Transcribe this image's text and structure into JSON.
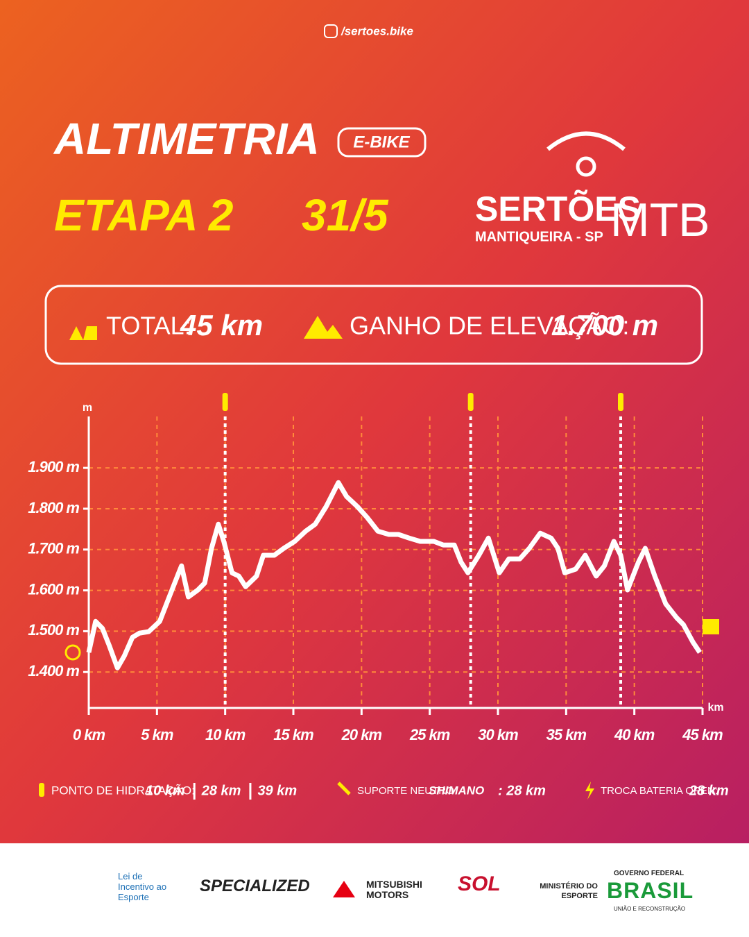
{
  "header": {
    "handle": "/sertoes.bike",
    "title": "ALTIMETRIA",
    "badge": "E-BIKE",
    "stage": "ETAPA 2",
    "date": "31/5",
    "logo_main": "SERTÕES",
    "logo_mtb": "MTB",
    "logo_sub": "MANTIQUEIRA - SP"
  },
  "stats": {
    "total_label": "TOTAL:",
    "total_value": "45 km",
    "gain_label": "GANHO DE ELEVAÇÃO:",
    "gain_value": "1.700 m"
  },
  "chart_data": {
    "type": "line",
    "y_unit": "m",
    "x_unit": "km",
    "x": [
      0,
      0.5,
      1.0,
      1.5,
      2.1,
      2.6,
      3.2,
      3.7,
      4.4,
      5.2,
      5.9,
      6.5,
      6.8,
      7.3,
      8.0,
      8.5,
      9.0,
      9.5,
      9.9,
      10.5,
      11.0,
      11.5,
      12.3,
      12.8,
      13.6,
      14.3,
      15.1,
      15.9,
      16.6,
      17.4,
      18.3,
      18.9,
      19.7,
      20.4,
      21.2,
      22.0,
      22.7,
      23.5,
      24.3,
      25.3,
      26.0,
      26.8,
      27.3,
      27.8,
      28.6,
      29.3,
      30.1,
      30.8,
      31.6,
      32.3,
      33.1,
      33.9,
      34.4,
      34.9,
      35.7,
      36.4,
      37.2,
      37.8,
      38.5,
      39.0,
      39.5,
      40.3,
      40.8,
      41.5,
      42.3,
      43.1,
      43.6,
      44.3,
      44.8
    ],
    "series": [
      {
        "color": "#ffffff",
        "values": [
          1448,
          1524,
          1507,
          1465,
          1410,
          1439,
          1485,
          1495,
          1499,
          1524,
          1584,
          1635,
          1660,
          1584,
          1601,
          1618,
          1703,
          1762,
          1720,
          1643,
          1635,
          1609,
          1635,
          1686,
          1686,
          1703,
          1720,
          1745,
          1762,
          1805,
          1864,
          1830,
          1805,
          1779,
          1745,
          1737,
          1737,
          1728,
          1720,
          1720,
          1711,
          1711,
          1669,
          1643,
          1686,
          1728,
          1643,
          1677,
          1677,
          1703,
          1740,
          1728,
          1703,
          1643,
          1652,
          1686,
          1635,
          1660,
          1720,
          1686,
          1601,
          1669,
          1703,
          1635,
          1567,
          1533,
          1516,
          1473,
          1448
        ]
      }
    ],
    "xlim": [
      0,
      45
    ],
    "ylim": [
      1312,
      2026
    ],
    "xticks": [
      {
        "value": 0,
        "label": "0 km"
      },
      {
        "value": 5,
        "label": "5 km"
      },
      {
        "value": 10,
        "label": "10 km"
      },
      {
        "value": 15,
        "label": "15 km"
      },
      {
        "value": 20,
        "label": "20 km"
      },
      {
        "value": 25,
        "label": "25 km"
      },
      {
        "value": 30,
        "label": "30 km"
      },
      {
        "value": 35,
        "label": "35 km"
      },
      {
        "value": 40,
        "label": "40 km"
      },
      {
        "value": 45,
        "label": "45 km"
      }
    ],
    "yticks": [
      {
        "value": 1400,
        "label": "1.400 m"
      },
      {
        "value": 1500,
        "label": "1.500 m"
      },
      {
        "value": 1600,
        "label": "1.600 m"
      },
      {
        "value": 1700,
        "label": "1.700 m"
      },
      {
        "value": 1800,
        "label": "1.800 m"
      },
      {
        "value": 1900,
        "label": "1.900 m"
      }
    ],
    "grid": true,
    "markers": [
      {
        "value": 10,
        "label": "10 km"
      },
      {
        "value": 28,
        "label": "28 km"
      },
      {
        "value": 39,
        "label": "39 km"
      }
    ]
  },
  "legend": {
    "hydration_label": "PONTO DE HIDRATAÇÃO:",
    "support_label": "SUPORTE NEUTRO",
    "support_brand": "SHIMANO",
    "support_value": ": 28 km",
    "battery_label": "TROCA BATERIA OPEN:",
    "battery_value": "28 km"
  },
  "sponsors": {
    "lei": "Lei de Incentivo ao Esporte",
    "specialized": "SPECIALIZED",
    "mitsubishi": "MITSUBISHI MOTORS",
    "sol": "SOL",
    "ministerio": "MINISTÉRIO DO ESPORTE",
    "gov": "GOVERNO FEDERAL",
    "brasil": "BRASIL",
    "uniao": "UNIÃO E RECONSTRUÇÃO"
  }
}
